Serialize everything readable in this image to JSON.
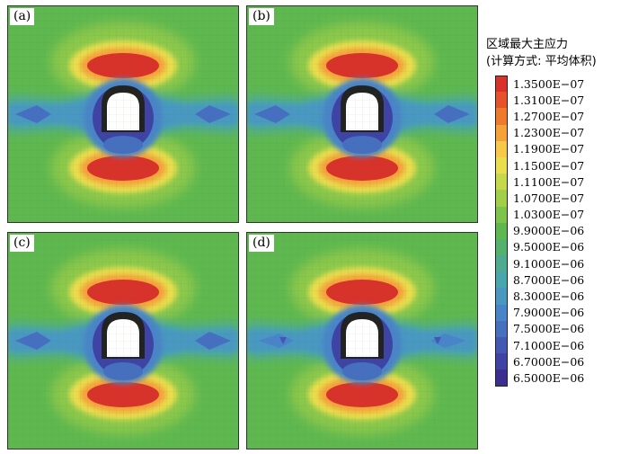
{
  "panels": [
    {
      "label": "(a)"
    },
    {
      "label": "(b)"
    },
    {
      "label": "(c)"
    },
    {
      "label": "(d)"
    }
  ],
  "legend": {
    "title_line1": "区域最大主应力",
    "title_line2": "(计算方式: 平均体积)",
    "entries": [
      {
        "value": "1.3500E−07",
        "color": "#d9322a"
      },
      {
        "value": "1.3100E−07",
        "color": "#e5522b"
      },
      {
        "value": "1.2700E−07",
        "color": "#ee7a2e"
      },
      {
        "value": "1.2300E−07",
        "color": "#f5a23a"
      },
      {
        "value": "1.1900E−07",
        "color": "#f7c84a"
      },
      {
        "value": "1.1500E−07",
        "color": "#e9de4e"
      },
      {
        "value": "1.1100E−07",
        "color": "#c6d84b"
      },
      {
        "value": "1.0700E−07",
        "color": "#a2cf4a"
      },
      {
        "value": "1.0300E−07",
        "color": "#7dc34c"
      },
      {
        "value": "9.9000E−06",
        "color": "#5fb84f"
      },
      {
        "value": "9.5000E−06",
        "color": "#55b26e"
      },
      {
        "value": "9.1000E−06",
        "color": "#4eab8f"
      },
      {
        "value": "8.7000E−06",
        "color": "#49a6ad"
      },
      {
        "value": "8.3000E−06",
        "color": "#4a98c2"
      },
      {
        "value": "7.9000E−06",
        "color": "#4a84c8"
      },
      {
        "value": "7.5000E−06",
        "color": "#4670bf"
      },
      {
        "value": "7.1000E−06",
        "color": "#4258b3"
      },
      {
        "value": "6.7000E−06",
        "color": "#3f43a5"
      },
      {
        "value": "6.5000E−06",
        "color": "#3a2f8f"
      }
    ]
  }
}
